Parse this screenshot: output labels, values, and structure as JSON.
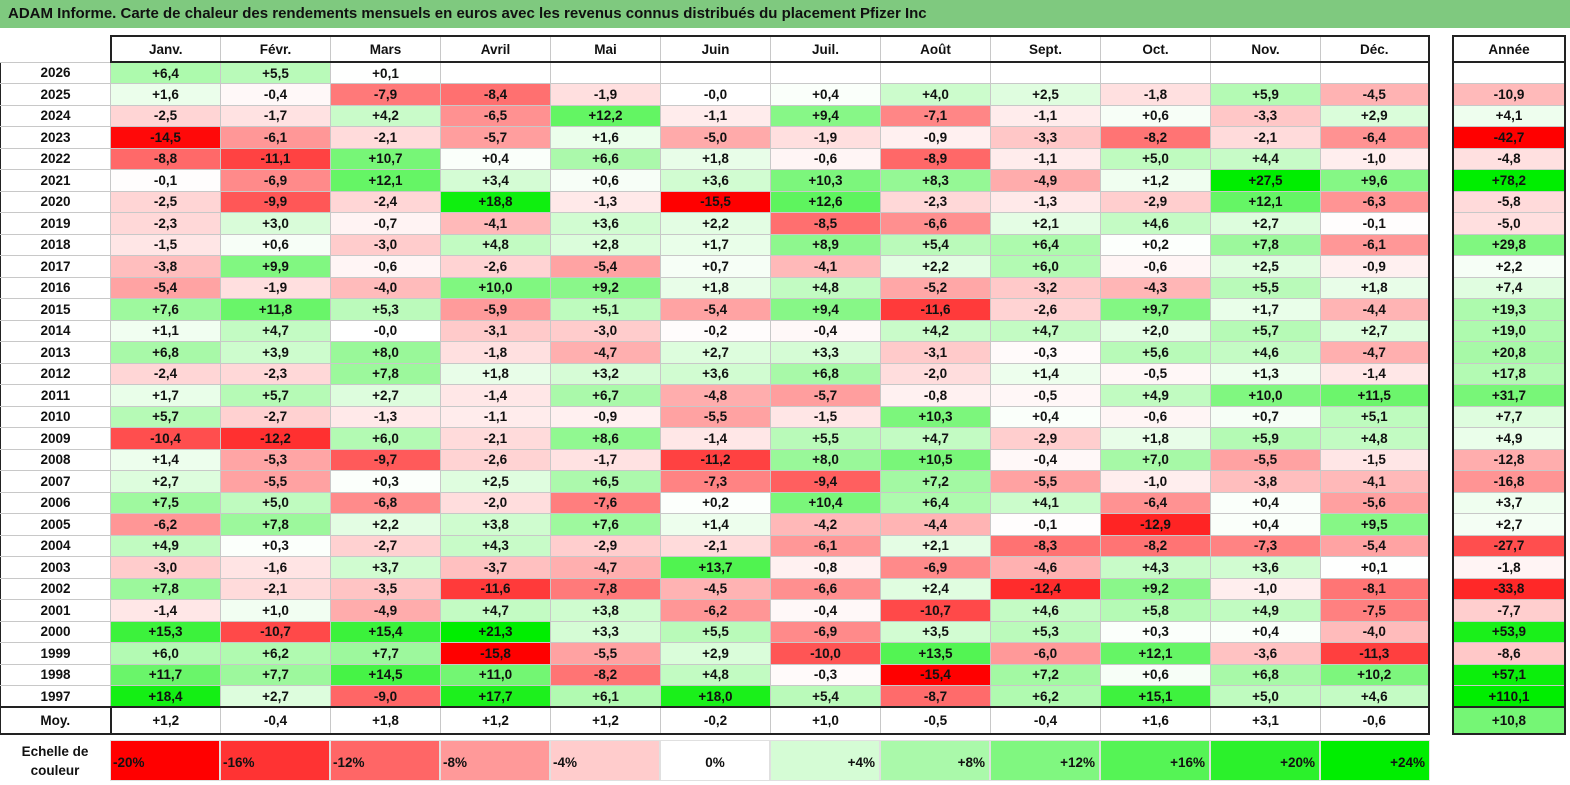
{
  "title": "ADAM Informe. Carte de chaleur des rendements mensuels en euros avec les revenus connus distribués du placement Pfizer Inc",
  "chart_data": {
    "type": "heatmap",
    "title": "ADAM Informe. Carte de chaleur des rendements mensuels en euros avec les revenus connus distribués du placement Pfizer Inc",
    "months": [
      "Janv.",
      "Févr.",
      "Mars",
      "Avril",
      "Mai",
      "Juin",
      "Juil.",
      "Août",
      "Sept.",
      "Oct.",
      "Nov.",
      "Déc."
    ],
    "year_header": "Année",
    "rows": [
      {
        "year": "2026",
        "values": [
          "+6,4",
          "+5,5",
          "+0,1",
          "",
          "",
          "",
          "",
          "",
          "",
          "",
          "",
          ""
        ],
        "annual": ""
      },
      {
        "year": "2025",
        "values": [
          "+1,6",
          "-0,4",
          "-7,9",
          "-8,4",
          "-1,9",
          "-0,0",
          "+0,4",
          "+4,0",
          "+2,5",
          "-1,8",
          "+5,9",
          "-4,5"
        ],
        "annual": "-10,9"
      },
      {
        "year": "2024",
        "values": [
          "-2,5",
          "-1,7",
          "+4,2",
          "-6,5",
          "+12,2",
          "-1,1",
          "+9,4",
          "-7,1",
          "-1,1",
          "+0,6",
          "-3,3",
          "+2,9"
        ],
        "annual": "+4,1"
      },
      {
        "year": "2023",
        "values": [
          "-14,5",
          "-6,1",
          "-2,1",
          "-5,7",
          "+1,6",
          "-5,0",
          "-1,9",
          "-0,9",
          "-3,3",
          "-8,2",
          "-2,1",
          "-6,4"
        ],
        "annual": "-42,7"
      },
      {
        "year": "2022",
        "values": [
          "-8,8",
          "-11,1",
          "+10,7",
          "+0,4",
          "+6,6",
          "+1,8",
          "-0,6",
          "-8,9",
          "-1,1",
          "+5,0",
          "+4,4",
          "-1,0"
        ],
        "annual": "-4,8"
      },
      {
        "year": "2021",
        "values": [
          "-0,1",
          "-6,9",
          "+12,1",
          "+3,4",
          "+0,6",
          "+3,6",
          "+10,3",
          "+8,3",
          "-4,9",
          "+1,2",
          "+27,5",
          "+9,6"
        ],
        "annual": "+78,2"
      },
      {
        "year": "2020",
        "values": [
          "-2,5",
          "-9,9",
          "-2,4",
          "+18,8",
          "-1,3",
          "-15,5",
          "+12,6",
          "-2,3",
          "-1,3",
          "-2,9",
          "+12,1",
          "-6,3"
        ],
        "annual": "-5,8"
      },
      {
        "year": "2019",
        "values": [
          "-2,3",
          "+3,0",
          "-0,7",
          "-4,1",
          "+3,6",
          "+2,2",
          "-8,5",
          "-6,6",
          "+2,1",
          "+4,6",
          "+2,7",
          "-0,1"
        ],
        "annual": "-5,0"
      },
      {
        "year": "2018",
        "values": [
          "-1,5",
          "+0,6",
          "-3,0",
          "+4,8",
          "+2,8",
          "+1,7",
          "+8,9",
          "+5,4",
          "+6,4",
          "+0,2",
          "+7,8",
          "-6,1"
        ],
        "annual": "+29,8"
      },
      {
        "year": "2017",
        "values": [
          "-3,8",
          "+9,9",
          "-0,6",
          "-2,6",
          "-5,4",
          "+0,7",
          "-4,1",
          "+2,2",
          "+6,0",
          "-0,6",
          "+2,5",
          "-0,9"
        ],
        "annual": "+2,2"
      },
      {
        "year": "2016",
        "values": [
          "-5,4",
          "-1,9",
          "-4,0",
          "+10,0",
          "+9,2",
          "+1,8",
          "+4,8",
          "-5,2",
          "-3,2",
          "-4,3",
          "+5,5",
          "+1,8"
        ],
        "annual": "+7,4"
      },
      {
        "year": "2015",
        "values": [
          "+7,6",
          "+11,8",
          "+5,3",
          "-5,9",
          "+5,1",
          "-5,4",
          "+9,4",
          "-11,6",
          "-2,6",
          "+9,7",
          "+1,7",
          "-4,4"
        ],
        "annual": "+19,3"
      },
      {
        "year": "2014",
        "values": [
          "+1,1",
          "+4,7",
          "-0,0",
          "-3,1",
          "-3,0",
          "-0,2",
          "-0,4",
          "+4,2",
          "+4,7",
          "+2,0",
          "+5,7",
          "+2,7"
        ],
        "annual": "+19,0"
      },
      {
        "year": "2013",
        "values": [
          "+6,8",
          "+3,9",
          "+8,0",
          "-1,8",
          "-4,7",
          "+2,7",
          "+3,3",
          "-3,1",
          "-0,3",
          "+5,6",
          "+4,6",
          "-4,7"
        ],
        "annual": "+20,8"
      },
      {
        "year": "2012",
        "values": [
          "-2,4",
          "-2,3",
          "+7,8",
          "+1,8",
          "+3,2",
          "+3,6",
          "+6,8",
          "-2,0",
          "+1,4",
          "-0,5",
          "+1,3",
          "-1,4"
        ],
        "annual": "+17,8"
      },
      {
        "year": "2011",
        "values": [
          "+1,7",
          "+5,7",
          "+2,7",
          "-1,4",
          "+6,7",
          "-4,8",
          "-5,7",
          "-0,8",
          "-0,5",
          "+4,9",
          "+10,0",
          "+11,5"
        ],
        "annual": "+31,7"
      },
      {
        "year": "2010",
        "values": [
          "+5,7",
          "-2,7",
          "-1,3",
          "-1,1",
          "-0,9",
          "-5,5",
          "-1,5",
          "+10,3",
          "+0,4",
          "-0,6",
          "+0,7",
          "+5,1"
        ],
        "annual": "+7,7"
      },
      {
        "year": "2009",
        "values": [
          "-10,4",
          "-12,2",
          "+6,0",
          "-2,1",
          "+8,6",
          "-1,4",
          "+5,5",
          "+4,7",
          "-2,9",
          "+1,8",
          "+5,9",
          "+4,8"
        ],
        "annual": "+4,9"
      },
      {
        "year": "2008",
        "values": [
          "+1,4",
          "-5,3",
          "-9,7",
          "-2,6",
          "-1,7",
          "-11,2",
          "+8,0",
          "+10,5",
          "-0,4",
          "+7,0",
          "-5,5",
          "-1,5"
        ],
        "annual": "-12,8"
      },
      {
        "year": "2007",
        "values": [
          "+2,7",
          "-5,5",
          "+0,3",
          "+2,5",
          "+6,5",
          "-7,3",
          "-9,4",
          "+7,2",
          "-5,5",
          "-1,0",
          "-3,8",
          "-4,1"
        ],
        "annual": "-16,8"
      },
      {
        "year": "2006",
        "values": [
          "+7,5",
          "+5,0",
          "-6,8",
          "-2,0",
          "-7,6",
          "+0,2",
          "+10,4",
          "+6,4",
          "+4,1",
          "-6,4",
          "+0,4",
          "-5,6"
        ],
        "annual": "+3,7"
      },
      {
        "year": "2005",
        "values": [
          "-6,2",
          "+7,8",
          "+2,2",
          "+3,8",
          "+7,6",
          "+1,4",
          "-4,2",
          "-4,4",
          "-0,1",
          "-12,9",
          "+0,4",
          "+9,5"
        ],
        "annual": "+2,7"
      },
      {
        "year": "2004",
        "values": [
          "+4,9",
          "+0,3",
          "-2,7",
          "+4,3",
          "-2,9",
          "-2,1",
          "-6,1",
          "+2,1",
          "-8,3",
          "-8,2",
          "-7,3",
          "-5,4"
        ],
        "annual": "-27,7"
      },
      {
        "year": "2003",
        "values": [
          "-3,0",
          "-1,6",
          "+3,7",
          "-3,7",
          "-4,7",
          "+13,7",
          "-0,8",
          "-6,9",
          "-4,6",
          "+4,3",
          "+3,6",
          "+0,1"
        ],
        "annual": "-1,8"
      },
      {
        "year": "2002",
        "values": [
          "+7,8",
          "-2,1",
          "-3,5",
          "-11,6",
          "-7,8",
          "-4,5",
          "-6,6",
          "+2,4",
          "-12,4",
          "+9,2",
          "-1,0",
          "-8,1"
        ],
        "annual": "-33,8"
      },
      {
        "year": "2001",
        "values": [
          "-1,4",
          "+1,0",
          "-4,9",
          "+4,7",
          "+3,8",
          "-6,2",
          "-0,4",
          "-10,7",
          "+4,6",
          "+5,8",
          "+4,9",
          "-7,5"
        ],
        "annual": "-7,7"
      },
      {
        "year": "2000",
        "values": [
          "+15,3",
          "-10,7",
          "+15,4",
          "+21,3",
          "+3,3",
          "+5,5",
          "-6,9",
          "+3,5",
          "+5,3",
          "+0,3",
          "+0,4",
          "-4,0"
        ],
        "annual": "+53,9"
      },
      {
        "year": "1999",
        "values": [
          "+6,0",
          "+6,2",
          "+7,7",
          "-15,8",
          "-5,5",
          "+2,9",
          "-10,0",
          "+13,5",
          "-6,0",
          "+12,1",
          "-3,6",
          "-11,3"
        ],
        "annual": "-8,6"
      },
      {
        "year": "1998",
        "values": [
          "+11,7",
          "+7,7",
          "+14,5",
          "+11,0",
          "-8,2",
          "+4,8",
          "-0,3",
          "-15,4",
          "+7,2",
          "+0,6",
          "+6,8",
          "+10,2"
        ],
        "annual": "+57,1"
      },
      {
        "year": "1997",
        "values": [
          "+18,4",
          "+2,7",
          "-9,0",
          "+17,7",
          "+6,1",
          "+18,0",
          "+5,4",
          "-8,7",
          "+6,2",
          "+15,1",
          "+5,0",
          "+4,6"
        ],
        "annual": "+110,1"
      }
    ],
    "average": {
      "label": "Moy.",
      "values": [
        "+1,2",
        "-0,4",
        "+1,8",
        "+1,2",
        "+1,2",
        "-0,2",
        "+1,0",
        "-0,5",
        "-0,4",
        "+1,6",
        "+3,1",
        "-0,6"
      ],
      "annual": "+10,8"
    },
    "scale": {
      "label_line1": "Echelle de",
      "label_line2": "couleur",
      "stops": [
        {
          "label": "-20%",
          "value": -20,
          "kind": "neg"
        },
        {
          "label": "-16%",
          "value": -16,
          "kind": "neg"
        },
        {
          "label": "-12%",
          "value": -12,
          "kind": "neg"
        },
        {
          "label": "-8%",
          "value": -8,
          "kind": "neg"
        },
        {
          "label": "-4%",
          "value": -4,
          "kind": "neg"
        },
        {
          "label": "0%",
          "value": 0,
          "kind": "zero"
        },
        {
          "label": "+4%",
          "value": 4,
          "kind": "pos"
        },
        {
          "label": "+8%",
          "value": 8,
          "kind": "pos"
        },
        {
          "label": "+12%",
          "value": 12,
          "kind": "pos"
        },
        {
          "label": "+16%",
          "value": 16,
          "kind": "pos"
        },
        {
          "label": "+20%",
          "value": 20,
          "kind": "pos"
        },
        {
          "label": "+24%",
          "value": 24,
          "kind": "pos"
        }
      ]
    },
    "colors": {
      "negative": "#ff0000",
      "positive": "#00ee00",
      "neutral": "#ffffff",
      "title_bar": "#7fc97f"
    }
  }
}
